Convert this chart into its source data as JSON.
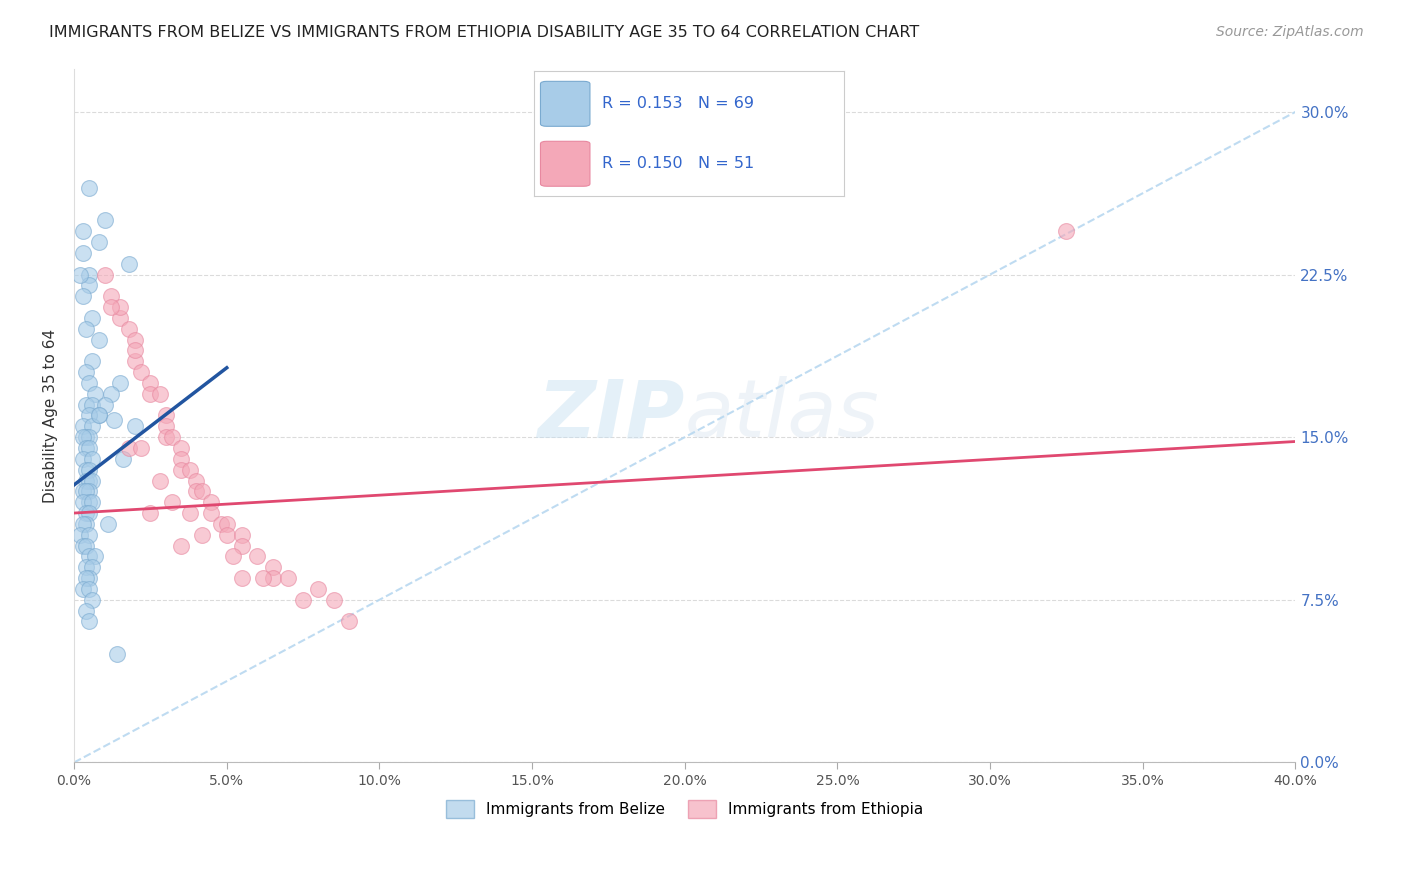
{
  "title": "IMMIGRANTS FROM BELIZE VS IMMIGRANTS FROM ETHIOPIA DISABILITY AGE 35 TO 64 CORRELATION CHART",
  "source": "Source: ZipAtlas.com",
  "ylabel": "Disability Age 35 to 64",
  "ytick_values": [
    0.0,
    7.5,
    15.0,
    22.5,
    30.0
  ],
  "xlim": [
    0.0,
    40.0
  ],
  "ylim": [
    0.0,
    32.0
  ],
  "watermark": "ZIPatlas",
  "legend_belize_R": 0.153,
  "legend_belize_N": 69,
  "legend_ethiopia_R": 0.15,
  "legend_ethiopia_N": 51,
  "belize_color": "#a8cce8",
  "ethiopia_color": "#f4a8b8",
  "belize_edge_color": "#7aaad0",
  "ethiopia_edge_color": "#e888a0",
  "belize_line_color": "#2255a0",
  "ethiopia_line_color": "#e04870",
  "dashed_line_color": "#b8d8f0",
  "right_tick_color": "#4472C4",
  "belize_x": [
    0.5,
    1.0,
    0.8,
    1.8,
    0.3,
    0.3,
    0.5,
    0.5,
    0.2,
    0.3,
    0.6,
    0.4,
    0.8,
    0.6,
    0.4,
    0.5,
    0.7,
    0.4,
    0.6,
    0.8,
    0.5,
    0.3,
    0.6,
    0.4,
    0.5,
    0.3,
    0.4,
    0.5,
    0.3,
    0.6,
    0.4,
    0.5,
    0.4,
    0.5,
    0.6,
    0.3,
    0.5,
    0.4,
    0.5,
    0.3,
    0.6,
    0.4,
    0.5,
    0.4,
    0.3,
    0.2,
    0.5,
    0.3,
    0.4,
    0.5,
    0.7,
    0.4,
    0.6,
    0.5,
    0.4,
    0.3,
    0.5,
    0.6,
    0.4,
    0.5,
    1.5,
    1.2,
    1.0,
    0.8,
    1.3,
    2.0,
    1.6,
    1.1,
    1.4
  ],
  "belize_y": [
    26.5,
    25.0,
    24.0,
    23.0,
    24.5,
    23.5,
    22.5,
    22.0,
    22.5,
    21.5,
    20.5,
    20.0,
    19.5,
    18.5,
    18.0,
    17.5,
    17.0,
    16.5,
    16.5,
    16.0,
    16.0,
    15.5,
    15.5,
    15.0,
    15.0,
    15.0,
    14.5,
    14.5,
    14.0,
    14.0,
    13.5,
    13.5,
    13.0,
    13.0,
    13.0,
    12.5,
    12.5,
    12.5,
    12.0,
    12.0,
    12.0,
    11.5,
    11.5,
    11.0,
    11.0,
    10.5,
    10.5,
    10.0,
    10.0,
    9.5,
    9.5,
    9.0,
    9.0,
    8.5,
    8.5,
    8.0,
    8.0,
    7.5,
    7.0,
    6.5,
    17.5,
    17.0,
    16.5,
    16.0,
    15.8,
    15.5,
    14.0,
    11.0,
    5.0
  ],
  "ethiopia_x": [
    1.0,
    1.2,
    1.5,
    1.5,
    1.8,
    2.0,
    2.0,
    2.0,
    2.2,
    2.5,
    2.5,
    2.8,
    3.0,
    3.0,
    3.0,
    3.2,
    3.5,
    3.5,
    3.5,
    3.8,
    4.0,
    4.0,
    4.2,
    4.5,
    4.5,
    4.8,
    5.0,
    5.0,
    5.5,
    5.5,
    6.0,
    6.5,
    6.5,
    7.0,
    8.0,
    9.0,
    1.8,
    2.2,
    2.8,
    3.2,
    3.8,
    4.2,
    5.2,
    6.2,
    7.5,
    8.5,
    1.2,
    2.5,
    3.5,
    5.5,
    32.5
  ],
  "ethiopia_y": [
    22.5,
    21.5,
    20.5,
    21.0,
    20.0,
    19.5,
    18.5,
    19.0,
    18.0,
    17.5,
    17.0,
    17.0,
    16.0,
    15.5,
    15.0,
    15.0,
    14.5,
    14.0,
    13.5,
    13.5,
    13.0,
    12.5,
    12.5,
    12.0,
    11.5,
    11.0,
    11.0,
    10.5,
    10.5,
    10.0,
    9.5,
    9.0,
    8.5,
    8.5,
    8.0,
    6.5,
    14.5,
    14.5,
    13.0,
    12.0,
    11.5,
    10.5,
    9.5,
    8.5,
    7.5,
    7.5,
    21.0,
    11.5,
    10.0,
    8.5,
    24.5
  ],
  "belize_line_x0": 0.0,
  "belize_line_y0": 12.8,
  "belize_line_x1": 5.0,
  "belize_line_y1": 18.2,
  "ethiopia_line_x0": 0.0,
  "ethiopia_line_y0": 11.5,
  "ethiopia_line_x1": 40.0,
  "ethiopia_line_y1": 14.8
}
